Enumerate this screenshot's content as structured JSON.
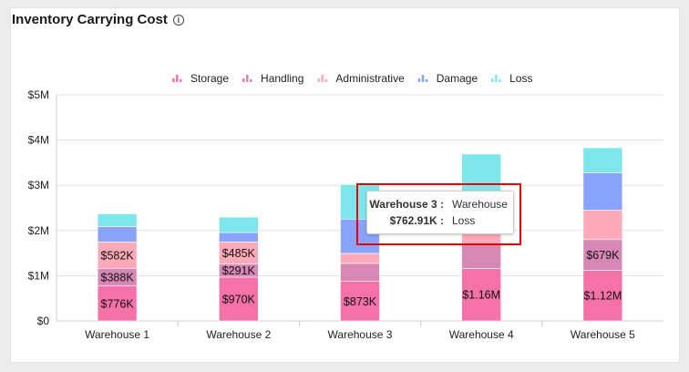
{
  "card": {
    "title": "Inventory Carrying Cost",
    "info_icon": "info-circle-icon"
  },
  "tooltip": {
    "key1": "Warehouse 3 :",
    "val1": "Warehouse",
    "key2": "$762.91K :",
    "val2": "Loss"
  },
  "chart_data": {
    "type": "stacked-bar",
    "title": "Inventory Carrying Cost",
    "categories": [
      "Warehouse 1",
      "Warehouse 2",
      "Warehouse 3",
      "Warehouse 4",
      "Warehouse 5"
    ],
    "ylim": [
      0,
      5000000
    ],
    "yticks": [
      0,
      1000000,
      2000000,
      3000000,
      4000000,
      5000000
    ],
    "ytick_labels": [
      "$0",
      "$1M",
      "$2M",
      "$3M",
      "$4M",
      "$5M"
    ],
    "grid": true,
    "legend_position": "top",
    "series": [
      {
        "name": "Storage",
        "color": "#f472a8",
        "values": [
          776000,
          970000,
          873000,
          1160000,
          1120000
        ],
        "labels": [
          "$776K",
          "$970K",
          "$873K",
          "$1.16M",
          "$1.12M"
        ]
      },
      {
        "name": "Handling",
        "color": "#d787b4",
        "values": [
          388000,
          291000,
          400000,
          530000,
          679000
        ],
        "labels": [
          "$388K",
          "$291K",
          null,
          null,
          "$679K"
        ]
      },
      {
        "name": "Administrative",
        "color": "#fda9ba",
        "values": [
          582000,
          485000,
          220000,
          310000,
          650000
        ],
        "labels": [
          "$582K",
          "$485K",
          null,
          null,
          null
        ]
      },
      {
        "name": "Damage",
        "color": "#8aa3fa",
        "values": [
          340000,
          210000,
          760000,
          700000,
          830000
        ],
        "labels": [
          null,
          null,
          null,
          null,
          null
        ]
      },
      {
        "name": "Loss",
        "color": "#7de6ea",
        "values": [
          280000,
          340000,
          762910,
          990000,
          550000
        ],
        "labels": [
          null,
          null,
          null,
          null,
          null
        ]
      }
    ]
  }
}
